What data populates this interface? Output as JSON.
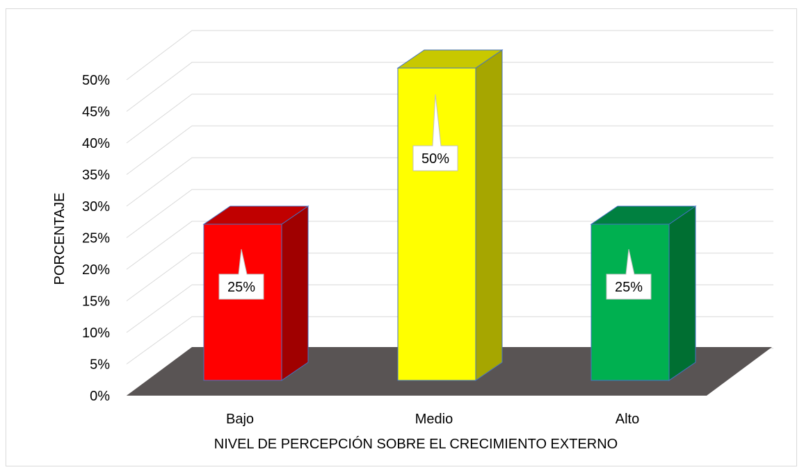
{
  "chart_data": {
    "type": "bar",
    "style": "3d-column",
    "categories": [
      "Bajo",
      "Medio",
      "Alto"
    ],
    "values": [
      25,
      50,
      25
    ],
    "data_labels": [
      "25%",
      "50%",
      "25%"
    ],
    "colors": {
      "front": [
        "#ff0000",
        "#ffff00",
        "#00b050"
      ],
      "top": [
        "#c00000",
        "#c8c800",
        "#008040"
      ],
      "side": [
        "#a00000",
        "#a6a600",
        "#006f32"
      ],
      "outline": "#4472c4",
      "floor": "#595454",
      "grid": "#d9d9d9"
    },
    "xlabel": "NIVEL DE PERCEPCIÓN SOBRE EL CRECIMIENTO EXTERNO",
    "ylabel": "PORCENTAJE",
    "ylim": [
      0,
      50
    ],
    "y_ticks": [
      "0%",
      "5%",
      "10%",
      "15%",
      "20%",
      "25%",
      "30%",
      "35%",
      "40%",
      "45%",
      "50%"
    ],
    "grid": true,
    "legend": "none"
  }
}
